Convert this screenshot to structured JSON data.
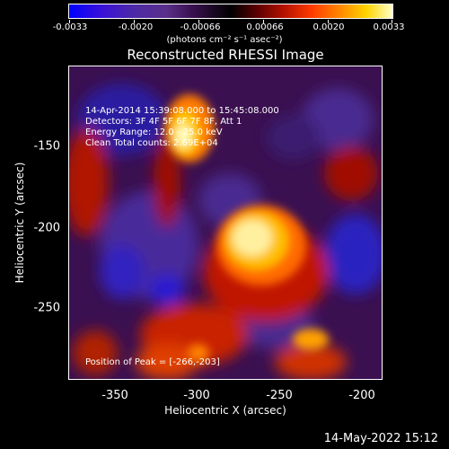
{
  "colorbar": {
    "ticks": [
      "-0.0033",
      "-0.0020",
      "-0.00066",
      "0.00066",
      "0.0020",
      "0.0033"
    ],
    "units": "(photons cm⁻² s⁻¹ asec⁻²)"
  },
  "image": {
    "title": "Reconstructed RHESSI Image",
    "info": [
      "14-Apr-2014 15:39:08.000 to 15:45:08.000",
      "Detectors: 3F 4F 5F 6F 7F 8F, Att 1",
      "Energy Range: 12.0 - 25.0 keV",
      "Clean     Total counts: 2.69E+04"
    ],
    "peak": "Position of Peak = [-266,-203]",
    "xlabel": "Heliocentric X (arcsec)",
    "ylabel": "Heliocentric Y (arcsec)",
    "xticks": [
      "-350",
      "-300",
      "-250",
      "-200"
    ],
    "yticks": [
      "-150",
      "-200",
      "-250"
    ]
  },
  "timestamp": "14-May-2022 15:12"
}
